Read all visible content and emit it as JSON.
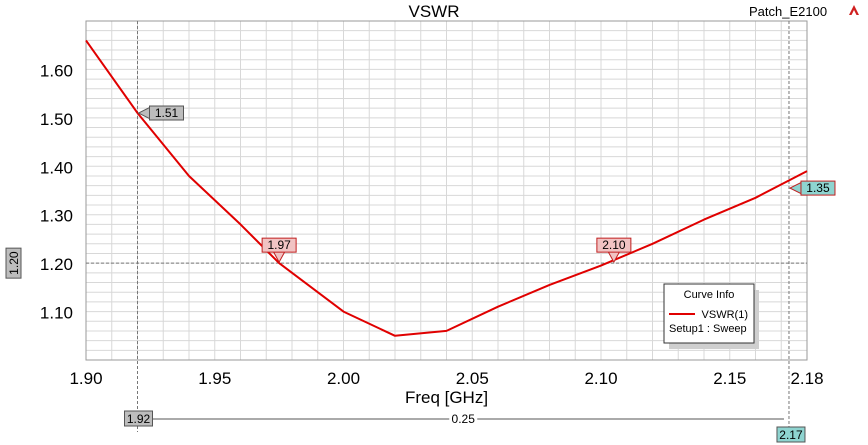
{
  "header": {
    "title": "VSWR",
    "project": "Patch_E2100"
  },
  "chart_data": {
    "type": "line",
    "title": "VSWR",
    "xlabel": "Freq [GHz]",
    "ylabel": "",
    "xlim": [
      1.9,
      2.18
    ],
    "ylim": [
      1.0,
      1.7
    ],
    "x_ticks": [
      1.9,
      1.95,
      2.0,
      2.05,
      2.1,
      2.15,
      2.18
    ],
    "x_tick_labels": [
      "1.90",
      "1.95",
      "2.00",
      "2.05",
      "2.10",
      "2.15",
      "2.18"
    ],
    "y_ticks": [
      1.1,
      1.2,
      1.3,
      1.4,
      1.5,
      1.6
    ],
    "y_tick_labels": [
      "1.10",
      "1.20",
      "1.30",
      "1.40",
      "1.50",
      "1.60"
    ],
    "grid": true,
    "series": [
      {
        "name": "VSWR(1)",
        "color": "#e00000",
        "x": [
          1.9,
          1.92,
          1.94,
          1.96,
          1.975,
          1.98,
          2.0,
          2.02,
          2.04,
          2.06,
          2.08,
          2.1,
          2.12,
          2.14,
          2.16,
          2.18
        ],
        "y": [
          1.66,
          1.51,
          1.38,
          1.28,
          1.2,
          1.18,
          1.1,
          1.05,
          1.06,
          1.11,
          1.155,
          1.195,
          1.24,
          1.29,
          1.335,
          1.39
        ]
      }
    ],
    "h_marker": {
      "value": 1.2,
      "label": "1.20"
    },
    "v_markers": [
      {
        "x": 1.92,
        "label": "1.92",
        "style": "gray"
      },
      {
        "x": 2.173,
        "label": "2.17",
        "style": "teal"
      }
    ],
    "delta": {
      "label": "0.25"
    },
    "markers": [
      {
        "x": 1.92,
        "y": 1.51,
        "label": "1.51",
        "type": "side",
        "style": "gray"
      },
      {
        "x": 1.975,
        "y": 1.2,
        "label": "1.97",
        "type": "top",
        "style": "pink"
      },
      {
        "x": 2.105,
        "y": 1.2,
        "label": "2.10",
        "type": "top",
        "style": "pink"
      },
      {
        "x": 2.173,
        "y": 1.355,
        "label": "1.35",
        "type": "side",
        "style": "teal"
      }
    ],
    "legend": {
      "title": "Curve Info",
      "entry": "VSWR(1)",
      "sub": "Setup1 : Sweep",
      "placement": "bottom-right"
    }
  },
  "colors": {
    "curve": "#e00000",
    "grid": "#d8d8d8",
    "marker_gray_fill": "#bdbdbd",
    "marker_pink_fill": "#f1c3c3",
    "marker_pink_border": "#c02020",
    "marker_teal_fill": "#8ed4d0",
    "marker_teal_border": "#c02020"
  }
}
